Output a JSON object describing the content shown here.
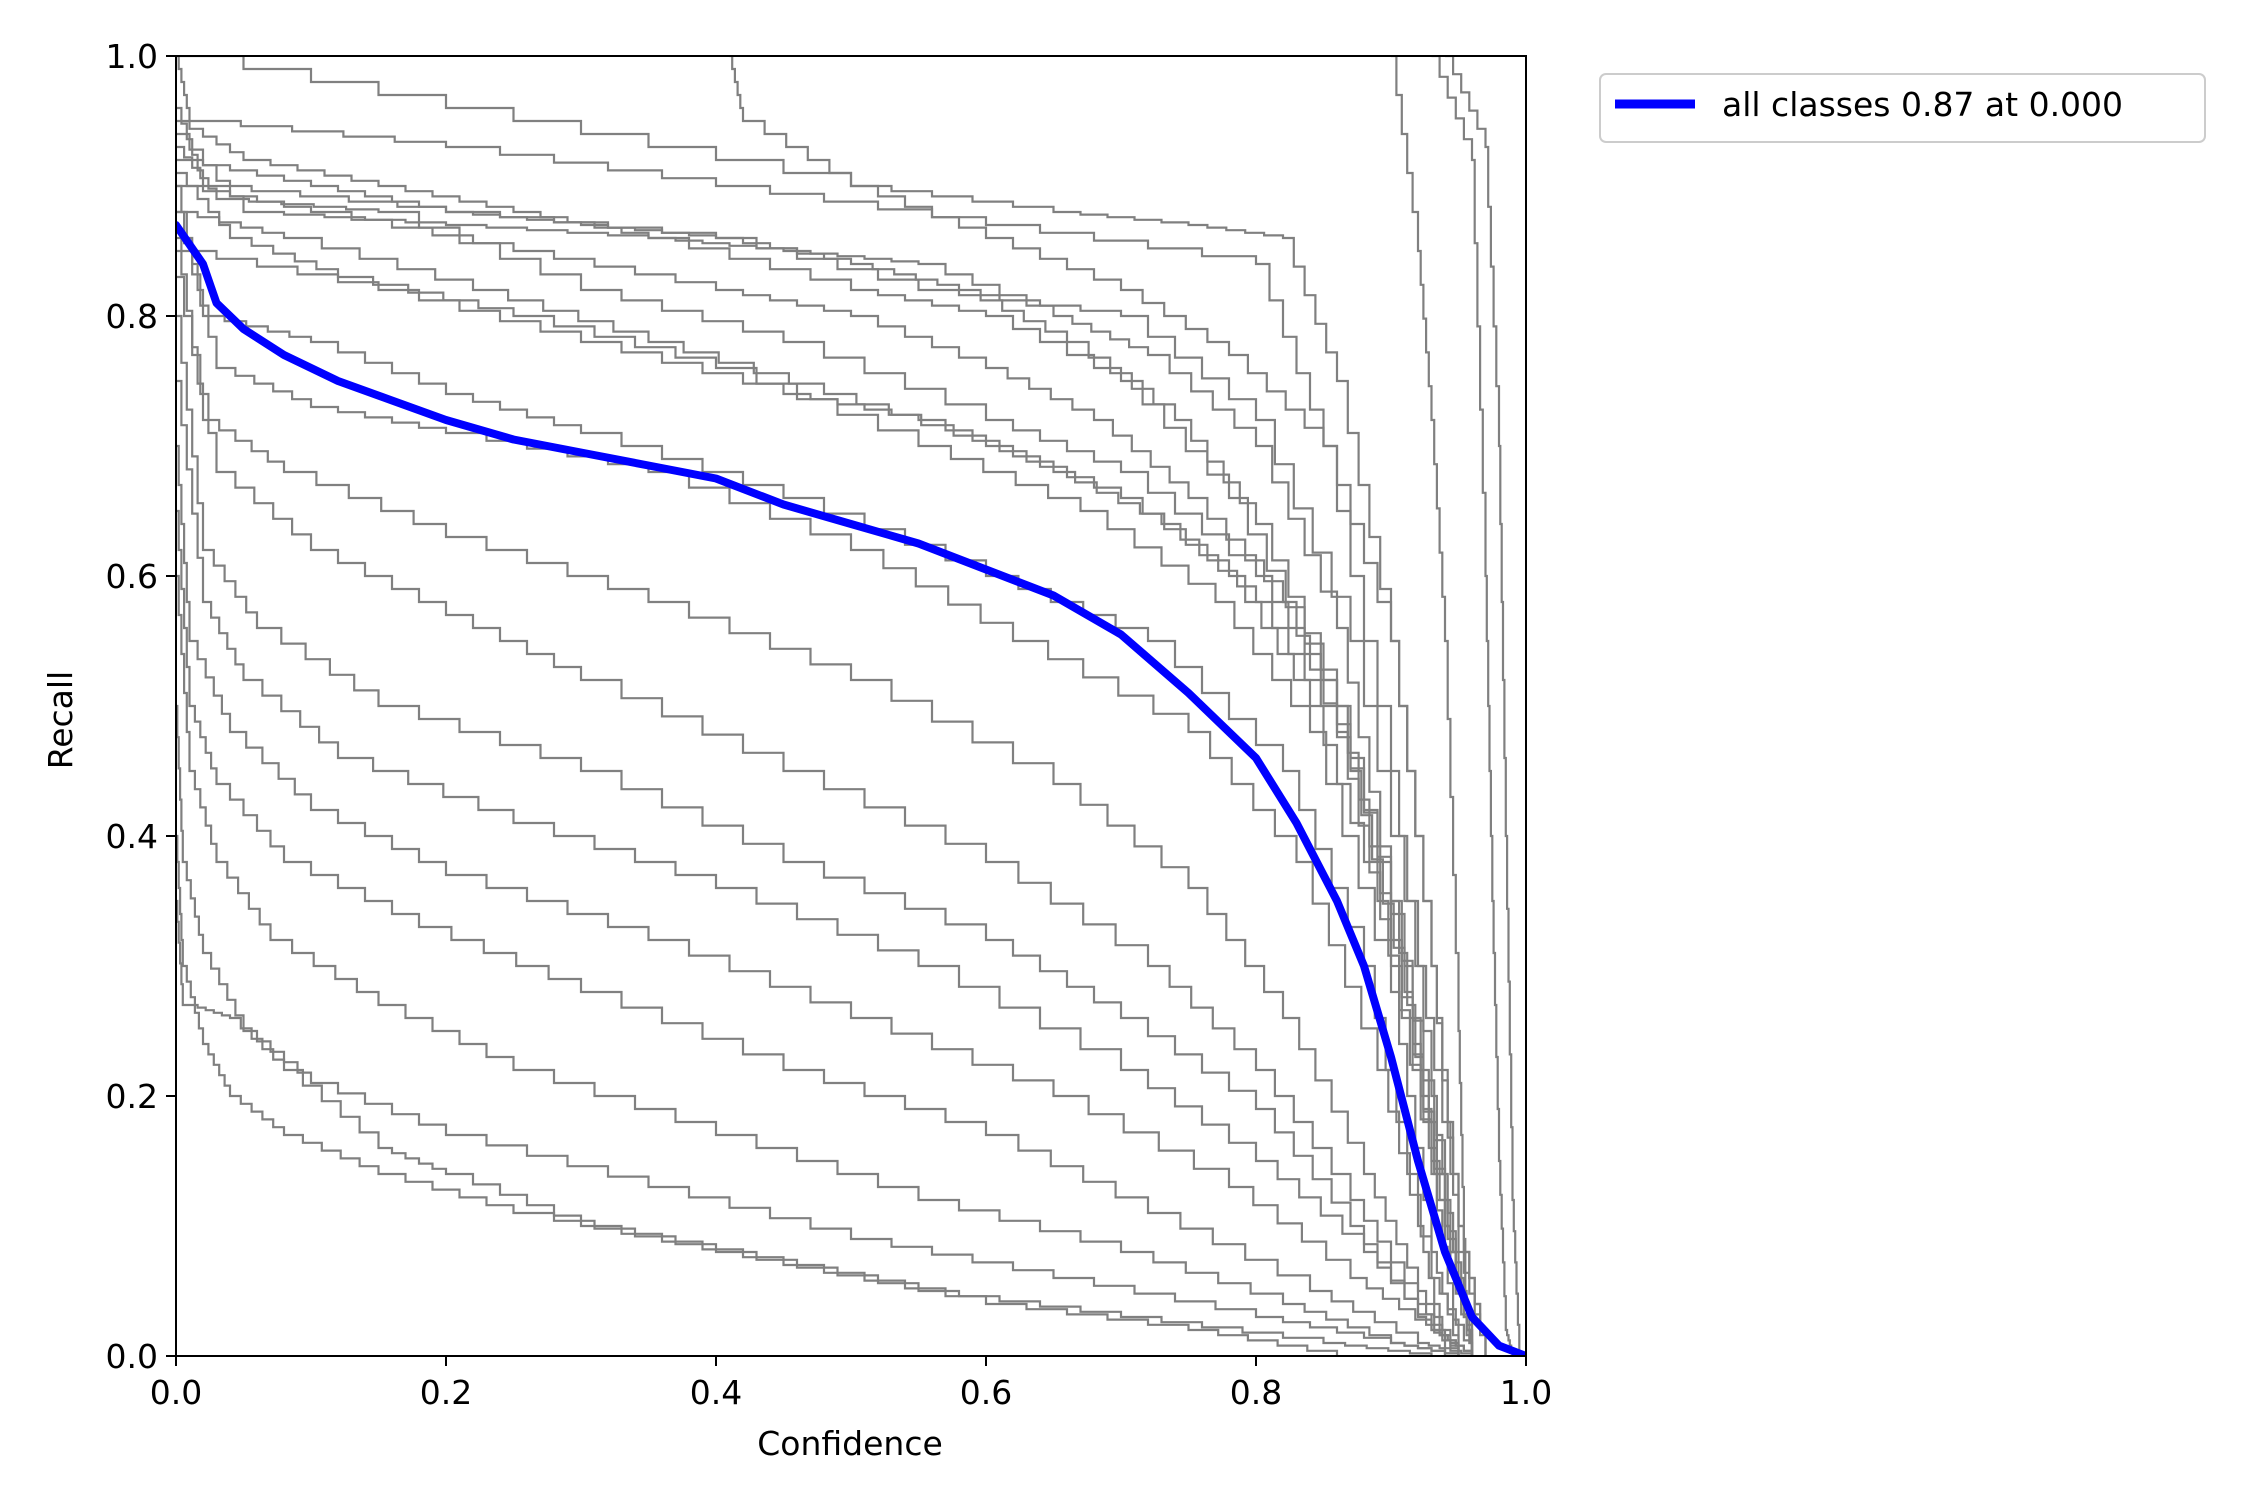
{
  "chart_data": {
    "type": "line",
    "title": "",
    "xlabel": "Confidence",
    "ylabel": "Recall",
    "xlim": [
      0.0,
      1.0
    ],
    "ylim": [
      0.0,
      1.0
    ],
    "xticks": [
      "0.0",
      "0.2",
      "0.4",
      "0.6",
      "0.8",
      "1.0"
    ],
    "yticks": [
      "0.0",
      "0.2",
      "0.4",
      "0.6",
      "0.8",
      "1.0"
    ],
    "grid": false,
    "legend_position": "outside-top-right",
    "colors": {
      "class_curves": "#808080",
      "all_classes": "#0000ff"
    },
    "highlight_series": {
      "name": "all classes 0.87 at 0.000",
      "x": [
        0.0,
        0.02,
        0.03,
        0.05,
        0.08,
        0.12,
        0.16,
        0.2,
        0.25,
        0.3,
        0.35,
        0.4,
        0.45,
        0.5,
        0.55,
        0.6,
        0.65,
        0.7,
        0.75,
        0.8,
        0.83,
        0.86,
        0.88,
        0.9,
        0.92,
        0.94,
        0.96,
        0.98,
        1.0
      ],
      "y": [
        0.87,
        0.84,
        0.81,
        0.79,
        0.77,
        0.75,
        0.735,
        0.72,
        0.705,
        0.695,
        0.685,
        0.675,
        0.655,
        0.64,
        0.625,
        0.605,
        0.585,
        0.555,
        0.51,
        0.46,
        0.41,
        0.35,
        0.3,
        0.23,
        0.15,
        0.08,
        0.03,
        0.008,
        0.0
      ]
    },
    "class_series": [
      {
        "x": [
          0.0,
          0.01,
          0.2,
          0.4,
          0.6,
          0.8,
          0.85,
          0.9,
          0.93,
          0.95,
          0.96
        ],
        "y": [
          1.0,
          0.95,
          0.93,
          0.9,
          0.87,
          0.84,
          0.7,
          0.45,
          0.2,
          0.05,
          0.0
        ]
      },
      {
        "x": [
          0.0,
          0.02,
          0.2,
          0.4,
          0.55,
          0.7,
          0.8,
          0.87,
          0.92,
          0.95,
          0.97
        ],
        "y": [
          0.96,
          0.9,
          0.88,
          0.86,
          0.82,
          0.8,
          0.72,
          0.55,
          0.3,
          0.1,
          0.0
        ]
      },
      {
        "x": [
          0.0,
          0.05,
          0.2,
          0.35,
          0.5,
          0.6,
          0.7,
          0.78,
          0.85,
          0.9,
          0.94,
          0.96
        ],
        "y": [
          0.94,
          0.88,
          0.87,
          0.86,
          0.82,
          0.8,
          0.75,
          0.66,
          0.52,
          0.35,
          0.12,
          0.0
        ]
      },
      {
        "x": [
          0.0,
          0.03,
          0.15,
          0.3,
          0.45,
          0.6,
          0.7,
          0.8,
          0.86,
          0.91,
          0.94,
          0.96
        ],
        "y": [
          0.93,
          0.89,
          0.88,
          0.82,
          0.78,
          0.72,
          0.68,
          0.6,
          0.5,
          0.3,
          0.1,
          0.0
        ]
      },
      {
        "x": [
          0.0,
          0.04,
          0.12,
          0.25,
          0.4,
          0.55,
          0.67,
          0.77,
          0.84,
          0.9,
          0.93,
          0.95
        ],
        "y": [
          0.91,
          0.86,
          0.83,
          0.8,
          0.76,
          0.7,
          0.65,
          0.58,
          0.48,
          0.28,
          0.08,
          0.0
        ]
      },
      {
        "x": [
          0.0,
          0.02,
          0.1,
          0.2,
          0.3,
          0.45,
          0.6,
          0.72,
          0.82,
          0.88,
          0.92,
          0.94
        ],
        "y": [
          0.9,
          0.8,
          0.78,
          0.74,
          0.71,
          0.66,
          0.6,
          0.55,
          0.45,
          0.3,
          0.1,
          0.0
        ]
      },
      {
        "x": [
          0.0,
          0.03,
          0.1,
          0.2,
          0.35,
          0.5,
          0.62,
          0.75,
          0.83,
          0.89,
          0.93,
          0.96
        ],
        "y": [
          0.88,
          0.76,
          0.73,
          0.71,
          0.68,
          0.62,
          0.55,
          0.48,
          0.38,
          0.22,
          0.06,
          0.0
        ]
      },
      {
        "x": [
          0.0,
          0.02,
          0.08,
          0.2,
          0.35,
          0.5,
          0.65,
          0.75,
          0.82,
          0.88,
          0.92,
          0.95
        ],
        "y": [
          0.86,
          0.72,
          0.68,
          0.63,
          0.58,
          0.52,
          0.44,
          0.36,
          0.26,
          0.14,
          0.05,
          0.0
        ]
      },
      {
        "x": [
          0.0,
          0.03,
          0.1,
          0.2,
          0.3,
          0.45,
          0.6,
          0.72,
          0.8,
          0.87,
          0.92,
          0.95
        ],
        "y": [
          0.83,
          0.68,
          0.62,
          0.57,
          0.52,
          0.45,
          0.38,
          0.3,
          0.22,
          0.12,
          0.04,
          0.0
        ]
      },
      {
        "x": [
          0.0,
          0.02,
          0.06,
          0.15,
          0.3,
          0.45,
          0.6,
          0.7,
          0.8,
          0.87,
          0.92,
          0.95
        ],
        "y": [
          0.8,
          0.62,
          0.56,
          0.5,
          0.45,
          0.38,
          0.32,
          0.26,
          0.19,
          0.1,
          0.03,
          0.0
        ]
      },
      {
        "x": [
          0.0,
          0.02,
          0.05,
          0.12,
          0.25,
          0.4,
          0.55,
          0.7,
          0.8,
          0.88,
          0.93,
          0.96
        ],
        "y": [
          0.75,
          0.58,
          0.52,
          0.46,
          0.41,
          0.36,
          0.3,
          0.22,
          0.15,
          0.08,
          0.02,
          0.0
        ]
      },
      {
        "x": [
          0.0,
          0.01,
          0.04,
          0.1,
          0.2,
          0.35,
          0.5,
          0.65,
          0.78,
          0.87,
          0.93,
          0.96
        ],
        "y": [
          0.7,
          0.55,
          0.48,
          0.42,
          0.37,
          0.32,
          0.26,
          0.2,
          0.13,
          0.06,
          0.02,
          0.0
        ]
      },
      {
        "x": [
          0.0,
          0.01,
          0.03,
          0.08,
          0.18,
          0.3,
          0.45,
          0.6,
          0.72,
          0.84,
          0.92,
          0.96
        ],
        "y": [
          0.65,
          0.5,
          0.44,
          0.38,
          0.33,
          0.28,
          0.22,
          0.17,
          0.11,
          0.05,
          0.01,
          0.0
        ]
      },
      {
        "x": [
          0.0,
          0.01,
          0.03,
          0.07,
          0.15,
          0.25,
          0.4,
          0.55,
          0.7,
          0.82,
          0.9,
          0.95
        ],
        "y": [
          0.6,
          0.45,
          0.38,
          0.32,
          0.27,
          0.22,
          0.17,
          0.12,
          0.08,
          0.04,
          0.01,
          0.0
        ]
      },
      {
        "x": [
          0.0,
          0.005,
          0.02,
          0.05,
          0.1,
          0.2,
          0.35,
          0.5,
          0.65,
          0.8,
          0.9,
          0.95
        ],
        "y": [
          0.5,
          0.38,
          0.31,
          0.25,
          0.21,
          0.17,
          0.13,
          0.09,
          0.06,
          0.03,
          0.01,
          0.0
        ]
      },
      {
        "x": [
          0.0,
          0.005,
          0.02,
          0.04,
          0.08,
          0.15,
          0.25,
          0.4,
          0.55,
          0.7,
          0.85,
          0.93
        ],
        "y": [
          0.4,
          0.3,
          0.24,
          0.2,
          0.17,
          0.14,
          0.11,
          0.08,
          0.05,
          0.03,
          0.01,
          0.0
        ]
      },
      {
        "x": [
          0.0,
          0.005,
          0.01,
          0.04,
          0.08,
          0.15,
          0.2,
          0.3,
          0.45,
          0.6,
          0.75,
          0.86
        ],
        "y": [
          0.35,
          0.27,
          0.27,
          0.26,
          0.22,
          0.16,
          0.14,
          0.1,
          0.07,
          0.04,
          0.02,
          0.0
        ]
      },
      {
        "x": [
          0.0,
          0.05,
          0.15,
          0.25,
          0.35,
          0.45,
          0.55,
          0.65,
          0.72,
          0.8,
          0.86,
          0.9,
          0.93,
          0.96
        ],
        "y": [
          0.95,
          0.92,
          0.9,
          0.88,
          0.86,
          0.85,
          0.84,
          0.8,
          0.77,
          0.7,
          0.56,
          0.35,
          0.15,
          0.0
        ]
      },
      {
        "x": [
          0.0,
          0.1,
          0.2,
          0.3,
          0.4,
          0.5,
          0.58,
          0.66,
          0.74,
          0.8,
          0.86,
          0.9,
          0.94,
          0.96
        ],
        "y": [
          0.92,
          0.9,
          0.88,
          0.87,
          0.86,
          0.84,
          0.82,
          0.78,
          0.72,
          0.64,
          0.5,
          0.32,
          0.1,
          0.0
        ]
      },
      {
        "x": [
          0.0,
          0.1,
          0.25,
          0.4,
          0.5,
          0.6,
          0.68,
          0.75,
          0.82,
          0.87,
          0.91,
          0.94,
          0.96
        ],
        "y": [
          0.9,
          0.88,
          0.85,
          0.82,
          0.8,
          0.76,
          0.72,
          0.66,
          0.58,
          0.45,
          0.28,
          0.08,
          0.0
        ]
      },
      {
        "x": [
          0.0,
          0.08,
          0.22,
          0.35,
          0.48,
          0.6,
          0.7,
          0.78,
          0.84,
          0.89,
          0.93,
          0.95
        ],
        "y": [
          0.88,
          0.86,
          0.82,
          0.78,
          0.74,
          0.7,
          0.66,
          0.6,
          0.5,
          0.35,
          0.14,
          0.0
        ]
      },
      {
        "x": [
          0.0,
          0.15,
          0.3,
          0.45,
          0.55,
          0.65,
          0.73,
          0.8,
          0.86,
          0.9,
          0.94,
          0.96
        ],
        "y": [
          0.85,
          0.82,
          0.78,
          0.74,
          0.72,
          0.68,
          0.64,
          0.58,
          0.48,
          0.3,
          0.1,
          0.0
        ]
      },
      {
        "x": [
          0.0,
          0.25,
          0.5,
          0.65,
          0.75,
          0.82,
          0.86,
          0.9,
          0.93,
          0.95,
          0.97
        ],
        "y": [
          1.0,
          0.95,
          0.9,
          0.88,
          0.87,
          0.86,
          0.75,
          0.55,
          0.3,
          0.1,
          0.0
        ]
      },
      {
        "x": [
          0.41,
          0.42,
          0.5,
          0.6,
          0.7,
          0.78,
          0.85,
          0.9,
          0.93,
          0.95,
          0.97
        ],
        "y": [
          1.0,
          0.95,
          0.9,
          0.86,
          0.82,
          0.77,
          0.7,
          0.55,
          0.3,
          0.08,
          0.0
        ]
      },
      {
        "x": [
          0.9,
          0.92,
          0.93,
          0.94,
          0.95,
          0.955,
          0.96
        ],
        "y": [
          1.0,
          0.85,
          0.72,
          0.55,
          0.25,
          0.05,
          0.0
        ]
      },
      {
        "x": [
          0.93,
          0.96,
          0.97,
          0.975,
          0.98,
          0.985,
          0.99
        ],
        "y": [
          1.0,
          0.92,
          0.6,
          0.35,
          0.15,
          0.02,
          0.0
        ]
      },
      {
        "x": [
          0.94,
          0.97,
          0.98,
          0.985,
          0.99,
          0.995
        ],
        "y": [
          1.0,
          0.93,
          0.7,
          0.4,
          0.12,
          0.0
        ]
      }
    ]
  }
}
